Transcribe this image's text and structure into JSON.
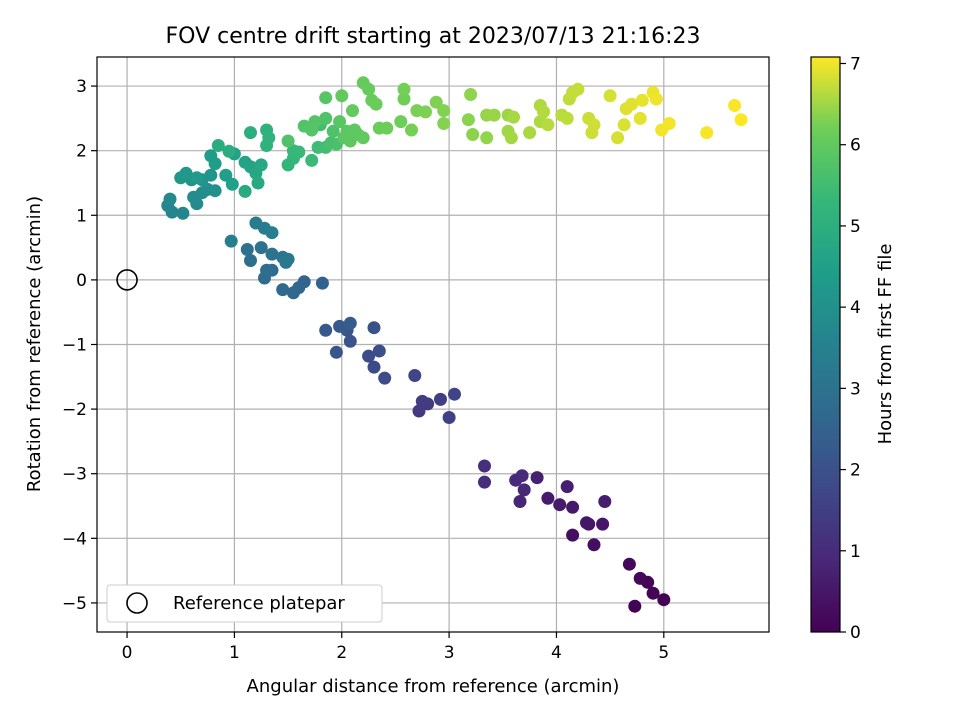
{
  "chart_data": {
    "type": "scatter",
    "title": "FOV centre drift starting at 2023/07/13 21:16:23",
    "xlabel": "Angular distance from reference (arcmin)",
    "ylabel": "Rotation from reference (arcmin)",
    "xlim": [
      -0.28,
      5.98
    ],
    "ylim": [
      -5.45,
      3.45
    ],
    "xticks": [
      0,
      1,
      2,
      3,
      4,
      5
    ],
    "yticks": [
      3,
      2,
      1,
      0,
      -1,
      -2,
      -3,
      -4,
      -5
    ],
    "xtick_labels": [
      "0",
      "1",
      "2",
      "3",
      "4",
      "5"
    ],
    "ytick_labels": [
      "3",
      "2",
      "1",
      "0",
      "−1",
      "−2",
      "−3",
      "−4",
      "−5"
    ],
    "grid": true,
    "legend": {
      "placement": "lower-left",
      "entries": [
        "Reference platepar"
      ]
    },
    "reference_point": {
      "x": 0,
      "y": 0,
      "label": "Reference platepar"
    },
    "colorbar": {
      "label": "Hours from first FF file",
      "colormap": "viridis",
      "range": [
        0,
        7.08
      ],
      "ticks": [
        0,
        1,
        2,
        3,
        4,
        5,
        6,
        7
      ],
      "tick_labels": [
        "0",
        "1",
        "2",
        "3",
        "4",
        "5",
        "6",
        "7"
      ]
    },
    "series": [
      {
        "colorby": "hours",
        "points": [
          [
            4.73,
            -5.05,
            0.03
          ],
          [
            5.0,
            -4.95,
            0.06
          ],
          [
            4.9,
            -4.85,
            0.09
          ],
          [
            4.85,
            -4.68,
            0.12
          ],
          [
            4.78,
            -4.62,
            0.15
          ],
          [
            4.68,
            -4.4,
            0.18
          ],
          [
            4.35,
            -4.1,
            0.3
          ],
          [
            4.15,
            -3.95,
            0.35
          ],
          [
            4.3,
            -3.78,
            0.4
          ],
          [
            4.43,
            -3.78,
            0.45
          ],
          [
            4.28,
            -3.76,
            0.48
          ],
          [
            4.15,
            -3.52,
            0.52
          ],
          [
            4.03,
            -3.48,
            0.56
          ],
          [
            3.92,
            -3.38,
            0.6
          ],
          [
            4.45,
            -3.43,
            0.64
          ],
          [
            4.1,
            -3.2,
            0.68
          ],
          [
            3.82,
            -3.06,
            0.72
          ],
          [
            3.66,
            -3.43,
            0.85
          ],
          [
            3.7,
            -3.25,
            0.9
          ],
          [
            3.62,
            -3.1,
            0.95
          ],
          [
            3.68,
            -3.03,
            1.0
          ],
          [
            3.33,
            -3.13,
            1.05
          ],
          [
            3.33,
            -2.88,
            1.1
          ],
          [
            2.72,
            -2.03,
            1.35
          ],
          [
            2.8,
            -1.92,
            1.4
          ],
          [
            2.75,
            -1.88,
            1.45
          ],
          [
            2.92,
            -1.85,
            1.5
          ],
          [
            3.0,
            -2.13,
            1.55
          ],
          [
            3.05,
            -1.77,
            1.6
          ],
          [
            2.68,
            -1.48,
            1.65
          ],
          [
            2.4,
            -1.52,
            1.8
          ],
          [
            2.3,
            -1.35,
            1.85
          ],
          [
            2.25,
            -1.18,
            1.9
          ],
          [
            2.35,
            -1.1,
            1.95
          ],
          [
            2.3,
            -0.74,
            2.0
          ],
          [
            2.08,
            -0.95,
            2.05
          ],
          [
            1.95,
            -1.12,
            2.1
          ],
          [
            2.05,
            -0.78,
            2.15
          ],
          [
            1.85,
            -0.78,
            2.2
          ],
          [
            1.98,
            -0.72,
            2.25
          ],
          [
            2.08,
            -0.67,
            2.3
          ],
          [
            1.82,
            -0.05,
            2.5
          ],
          [
            1.65,
            -0.03,
            2.55
          ],
          [
            1.6,
            -0.12,
            2.6
          ],
          [
            1.55,
            -0.2,
            2.65
          ],
          [
            1.45,
            -0.15,
            2.7
          ],
          [
            1.35,
            0.15,
            2.75
          ],
          [
            1.28,
            0.03,
            2.8
          ],
          [
            1.3,
            0.15,
            2.85
          ],
          [
            1.15,
            0.3,
            2.9
          ],
          [
            1.12,
            0.47,
            2.95
          ],
          [
            1.25,
            0.5,
            3.0
          ],
          [
            1.35,
            0.4,
            3.05
          ],
          [
            1.45,
            0.35,
            3.1
          ],
          [
            1.48,
            0.27,
            3.15
          ],
          [
            1.5,
            0.32,
            3.2
          ],
          [
            1.2,
            0.88,
            3.3
          ],
          [
            1.28,
            0.8,
            3.35
          ],
          [
            1.35,
            0.73,
            3.4
          ],
          [
            0.97,
            0.6,
            3.45
          ],
          [
            0.42,
            1.05,
            3.6
          ],
          [
            0.52,
            1.03,
            3.65
          ],
          [
            0.38,
            1.15,
            3.7
          ],
          [
            0.4,
            1.25,
            3.75
          ],
          [
            0.65,
            1.18,
            3.8
          ],
          [
            0.62,
            1.28,
            3.85
          ],
          [
            0.7,
            1.35,
            3.9
          ],
          [
            0.75,
            1.4,
            3.95
          ],
          [
            0.82,
            1.38,
            4.0
          ],
          [
            0.6,
            1.55,
            4.05
          ],
          [
            0.7,
            1.55,
            4.1
          ],
          [
            0.78,
            1.62,
            4.15
          ],
          [
            0.5,
            1.58,
            4.2
          ],
          [
            0.55,
            1.65,
            4.25
          ],
          [
            0.65,
            1.58,
            4.3
          ],
          [
            0.78,
            1.92,
            4.35
          ],
          [
            0.82,
            1.8,
            4.4
          ],
          [
            0.92,
            1.62,
            4.45
          ],
          [
            0.98,
            1.48,
            4.5
          ],
          [
            1.0,
            1.95,
            4.55
          ],
          [
            1.1,
            1.82,
            4.6
          ],
          [
            1.15,
            1.75,
            4.65
          ],
          [
            1.2,
            1.65,
            4.7
          ],
          [
            1.25,
            1.78,
            4.75
          ],
          [
            1.22,
            1.5,
            4.8
          ],
          [
            1.1,
            1.37,
            4.85
          ],
          [
            0.85,
            2.08,
            4.9
          ],
          [
            0.95,
            1.99,
            4.95
          ],
          [
            1.15,
            2.28,
            5.0
          ],
          [
            1.3,
            2.32,
            5.05
          ],
          [
            1.32,
            2.2,
            5.1
          ],
          [
            1.3,
            2.08,
            5.15
          ],
          [
            1.5,
            1.78,
            5.2
          ],
          [
            1.55,
            1.88,
            5.25
          ],
          [
            1.55,
            2.0,
            5.3
          ],
          [
            1.6,
            1.98,
            5.35
          ],
          [
            1.72,
            1.85,
            5.4
          ],
          [
            1.78,
            2.05,
            5.45
          ],
          [
            1.8,
            2.4,
            5.5
          ],
          [
            1.85,
            2.05,
            5.55
          ],
          [
            1.9,
            2.12,
            5.6
          ],
          [
            1.95,
            2.1,
            5.65
          ],
          [
            1.92,
            2.3,
            5.7
          ],
          [
            1.85,
            2.5,
            5.72
          ],
          [
            1.5,
            2.15,
            5.75
          ],
          [
            1.65,
            2.38,
            5.78
          ],
          [
            1.72,
            2.32,
            5.8
          ],
          [
            1.75,
            2.45,
            5.82
          ],
          [
            1.85,
            2.82,
            5.85
          ],
          [
            1.98,
            2.45,
            5.87
          ],
          [
            2.02,
            2.2,
            5.9
          ],
          [
            2.05,
            2.3,
            5.92
          ],
          [
            2.08,
            2.15,
            5.94
          ],
          [
            2.12,
            2.32,
            5.96
          ],
          [
            2.15,
            2.25,
            5.98
          ],
          [
            2.2,
            2.2,
            6.0
          ],
          [
            2.0,
            2.85,
            6.02
          ],
          [
            2.1,
            2.62,
            6.04
          ],
          [
            2.2,
            3.05,
            6.06
          ],
          [
            2.25,
            2.95,
            6.08
          ],
          [
            2.28,
            2.78,
            6.1
          ],
          [
            2.32,
            2.72,
            6.12
          ],
          [
            2.35,
            2.35,
            6.14
          ],
          [
            2.42,
            2.35,
            6.16
          ],
          [
            2.55,
            2.45,
            6.18
          ],
          [
            2.58,
            2.8,
            6.2
          ],
          [
            2.58,
            2.95,
            6.22
          ],
          [
            2.65,
            2.32,
            6.24
          ],
          [
            2.7,
            2.62,
            6.26
          ],
          [
            2.78,
            2.6,
            6.28
          ],
          [
            2.88,
            2.75,
            6.3
          ],
          [
            2.95,
            2.62,
            6.32
          ],
          [
            2.95,
            2.42,
            6.34
          ],
          [
            3.18,
            2.48,
            6.36
          ],
          [
            3.22,
            2.25,
            6.38
          ],
          [
            3.2,
            2.87,
            6.4
          ],
          [
            3.35,
            2.2,
            6.42
          ],
          [
            3.35,
            2.55,
            6.44
          ],
          [
            3.42,
            2.55,
            6.46
          ],
          [
            3.55,
            2.55,
            6.48
          ],
          [
            3.55,
            2.3,
            6.5
          ],
          [
            3.58,
            2.2,
            6.52
          ],
          [
            3.6,
            2.52,
            6.54
          ],
          [
            3.75,
            2.28,
            6.56
          ],
          [
            3.85,
            2.45,
            6.58
          ],
          [
            3.85,
            2.7,
            6.6
          ],
          [
            3.88,
            2.6,
            6.62
          ],
          [
            3.92,
            2.4,
            6.64
          ],
          [
            4.05,
            2.55,
            6.66
          ],
          [
            4.1,
            2.5,
            6.68
          ],
          [
            4.12,
            2.8,
            6.7
          ],
          [
            4.15,
            2.9,
            6.72
          ],
          [
            4.2,
            2.95,
            6.74
          ],
          [
            4.3,
            2.5,
            6.76
          ],
          [
            4.33,
            2.28,
            6.78
          ],
          [
            4.35,
            2.4,
            6.8
          ],
          [
            4.5,
            2.85,
            6.82
          ],
          [
            4.57,
            2.2,
            6.84
          ],
          [
            4.63,
            2.4,
            6.86
          ],
          [
            4.65,
            2.65,
            6.88
          ],
          [
            4.7,
            2.72,
            6.9
          ],
          [
            4.78,
            2.5,
            6.92
          ],
          [
            4.8,
            2.78,
            6.94
          ],
          [
            4.9,
            2.9,
            6.96
          ],
          [
            4.93,
            2.8,
            6.98
          ],
          [
            4.98,
            2.32,
            7.0
          ],
          [
            5.05,
            2.42,
            7.02
          ],
          [
            5.4,
            2.28,
            7.04
          ],
          [
            5.66,
            2.7,
            7.06
          ],
          [
            5.72,
            2.48,
            7.08
          ]
        ]
      }
    ]
  }
}
